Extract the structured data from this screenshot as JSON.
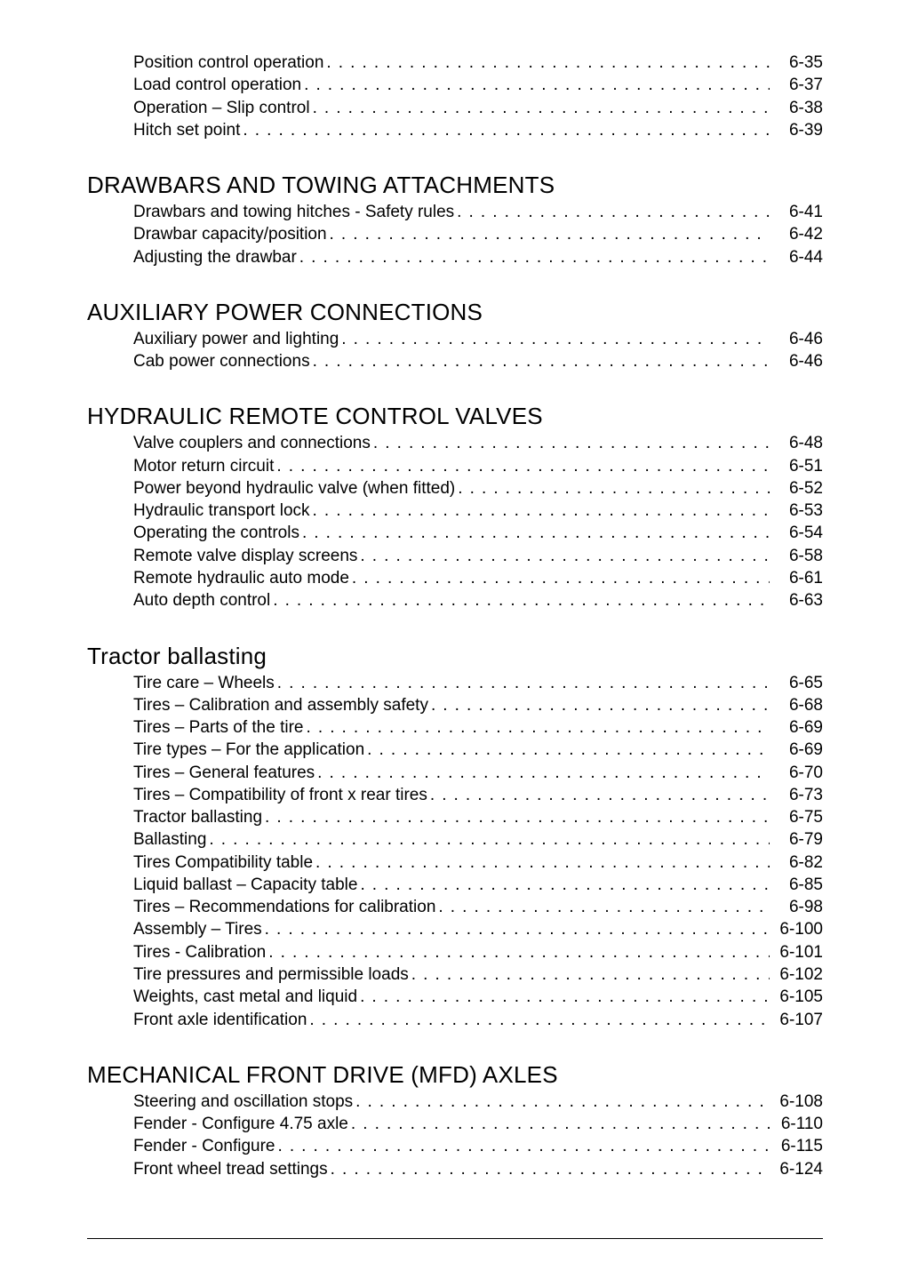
{
  "leader": ". . . . . . . . . . . . . . . . . . . . . . . . . . . . . . . . . . . . . . . . . . . . . . . . . . . . . . . . . . . . . . . . . . . . . . . . . . . . . . . . . . . . . . . . . . . . . . . . . . . . . . . . . . . . . . . . . . . . . . . . . . . . . . . . . . . . . . . . . . . . . . . . . . . . . .",
  "sections": [
    {
      "heading": null,
      "items": [
        {
          "label": "Position control operation ",
          "page": "6-35"
        },
        {
          "label": "Load control operation",
          "page": "6-37"
        },
        {
          "label": "Operation – Slip control ",
          "page": "6-38"
        },
        {
          "label": "Hitch set point ",
          "page": "6-39"
        }
      ]
    },
    {
      "heading": "DRAWBARS AND TOWING ATTACHMENTS",
      "items": [
        {
          "label": "Drawbars and towing hitches - Safety rules ",
          "page": "6-41"
        },
        {
          "label": "Drawbar capacity/position ",
          "page": "6-42"
        },
        {
          "label": "Adjusting the drawbar ",
          "page": "6-44"
        }
      ]
    },
    {
      "heading": "AUXILIARY POWER CONNECTIONS",
      "items": [
        {
          "label": "Auxiliary power and lighting ",
          "page": "6-46"
        },
        {
          "label": "Cab power connections ",
          "page": "6-46"
        }
      ]
    },
    {
      "heading": "HYDRAULIC REMOTE CONTROL VALVES",
      "items": [
        {
          "label": "Valve couplers and connections ",
          "page": "6-48"
        },
        {
          "label": "Motor return circuit ",
          "page": "6-51"
        },
        {
          "label": "Power beyond hydraulic valve (when fitted) ",
          "page": "6-52"
        },
        {
          "label": "Hydraulic transport lock ",
          "page": "6-53"
        },
        {
          "label": "Operating the controls ",
          "page": "6-54"
        },
        {
          "label": "Remote valve display screens",
          "page": "6-58"
        },
        {
          "label": "Remote hydraulic auto mode ",
          "page": "6-61"
        },
        {
          "label": "Auto depth control ",
          "page": "6-63"
        }
      ]
    },
    {
      "heading": "Tractor ballasting",
      "items": [
        {
          "label": "Tire care – Wheels ",
          "page": "6-65"
        },
        {
          "label": "Tires – Calibration and assembly safety ",
          "page": "6-68"
        },
        {
          "label": "Tires – Parts of the tire ",
          "page": "6-69"
        },
        {
          "label": "Tire types – For the application ",
          "page": "6-69"
        },
        {
          "label": "Tires – General features ",
          "page": "6-70"
        },
        {
          "label": "Tires – Compatibility of front x rear tires ",
          "page": "6-73"
        },
        {
          "label": "Tractor ballasting ",
          "page": "6-75"
        },
        {
          "label": "Ballasting ",
          "page": "6-79"
        },
        {
          "label": "Tires Compatibility table  ",
          "page": "6-82"
        },
        {
          "label": "Liquid ballast – Capacity table ",
          "page": "6-85"
        },
        {
          "label": "Tires – Recommendations for calibration ",
          "page": "6-98"
        },
        {
          "label": "Assembly – Tires ",
          "page": "6-100"
        },
        {
          "label": "Tires - Calibration ",
          "page": "6-101"
        },
        {
          "label": "Tire pressures and permissible loads ",
          "page": "6-102"
        },
        {
          "label": "Weights, cast metal and liquid",
          "page": "6-105"
        },
        {
          "label": "Front axle identification ",
          "page": "6-107"
        }
      ]
    },
    {
      "heading": "MECHANICAL FRONT DRIVE (MFD) AXLES",
      "items": [
        {
          "label": "Steering and oscillation stops ",
          "page": "6-108"
        },
        {
          "label": "Fender - Configure 4.75 axle  ",
          "page": "6-110"
        },
        {
          "label": "Fender - Configure ",
          "page": "6-115"
        },
        {
          "label": "Front wheel tread settings ",
          "page": "6-124"
        }
      ]
    }
  ]
}
